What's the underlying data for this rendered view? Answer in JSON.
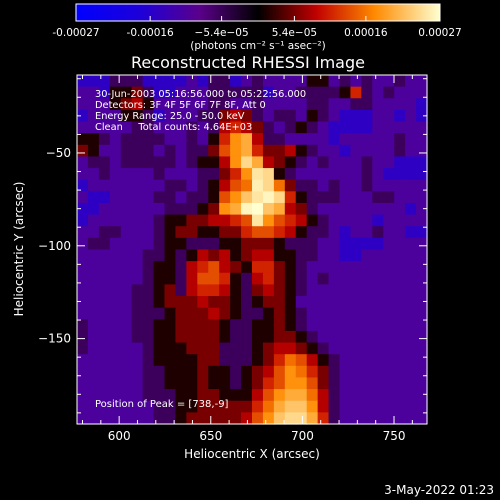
{
  "chart_data": {
    "type": "heatmap",
    "title": "Reconstructed RHESSI Image",
    "xlabel": "Heliocentric X (arcsec)",
    "ylabel": "Heliocentric Y (arcsec)",
    "xlim": [
      577,
      768
    ],
    "ylim": [
      -196,
      -8
    ],
    "xticks": [
      600,
      650,
      700,
      750
    ],
    "yticks": [
      -50,
      -100,
      -150
    ],
    "colorbar": {
      "range": [
        -0.00027,
        0.00027
      ],
      "tick_values": [
        -0.00027,
        -0.00016,
        -5.4e-05,
        5.4e-05,
        0.00016,
        0.00027
      ],
      "tick_labels": [
        "-0.00027",
        "-0.00016",
        "−5.4e−05",
        "5.4e−05",
        "0.00016",
        "0.00027"
      ],
      "unit_label": "(photons cm⁻² s⁻¹ asec⁻²)"
    },
    "annotations": [
      "30-Jun-2003 05:16:56.000 to 05:22:56.000",
      "Detectors: 3F 4F 5F 6F 7F 8F, Att 0",
      "Energy Range: 25.0 - 50.0 keV",
      "Clean     Total counts: 4.64E+03"
    ],
    "peak_label": "Position of Peak = [738,-9]",
    "timestamp": "3-May-2022 01:23",
    "grid": false,
    "note_values": "Approximate pixel intensity map (normalized -1..1 of colorbar range), rows top to bottom.",
    "grid_size": [
      30,
      32
    ],
    "rows": [
      "aaacccaaaabaccabcbbbbddbcbcbbcbb",
      "bbaddecaabbbcccccabbccccdgcbcbbb",
      "bbbdefdbbbbbccbbcbbbbccbbccbbbba",
      "abbbddcabbbccefecbccbdcbaaabbaba",
      "bbbbbccbbbcbcfgfecbcdcbaaaabbbbb",
      "ddcbccccbbcbdgjkfccbbbbabbbbbcbb",
      "edbbcccbcbccehjkgeefdcbbabbbbcbb",
      "bccbcccccbcddfjmkfedcbcbbbcbbaaa",
      "bbcbbbbcbbbccegjnmdcbbbbbbcbaaaa",
      "abbbbbbbccbcdfhiomieccbcbbcbbbbb",
      "baabbbbccbccdhjlnpmgdcccbbbccbbb",
      "aabbbbbbcccdejkprlkfecbbbbbbbbab",
      "abbbbbbcddeeffghnjhgfdcbbbbabbbb",
      "bbccbbbcdeeddeeghhgfdccbabbcbbaa",
      "bccbbbbcddcccddeeedcccbbaaaabbbb",
      "bbbbbbccdcdfefdeffddccbbaabbbbbb",
      "bbbbbbcddcfghfedggedcbbbbbbbbbbb",
      "bbbbbbcddcfhhgdcfgedcbcbbbbbbbbb",
      "bbbbbccdecfggfdcefedcbbbbbbbbbbb",
      "bbbbbccdeeefeedcdeedbbbbbbbbbbbb",
      "bbbbbcccdeeefedccdedcbbbbbbbbbbb",
      "cbbbbccddeeeedccddedcbbbbbbbbbbb",
      "cbbbbccddeeeedccddeedcbbbbbbbbbb",
      "cbbbbbcdddeeecccdeffedcbbbbbbbbb",
      "bbbbbbcddddeecccdegihfdcbbbbbbbb",
      "bbbbbbccdddeddcdefhjigecbbbbbbbb",
      "bbbbbbccdddeddcdeghjjhecbbbbbbbb",
      "bbbbbbcccddeedddfhjkkifcbbbbbbbb",
      "bbbbbbbccddeeeeegiklljfcbbbbbbbb",
      "bbbbbbbccdeeeeefhjlmmkgcbbbbbbbb"
    ]
  }
}
